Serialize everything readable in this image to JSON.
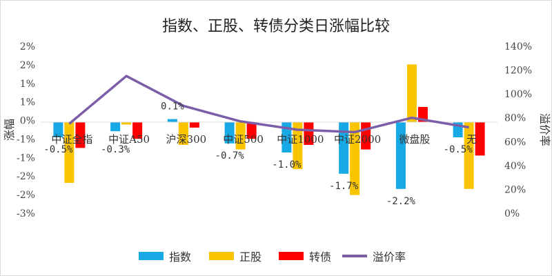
{
  "chart_data": {
    "type": "bar",
    "title": "指数、正股、转债分类日涨幅比较",
    "ylabel": "涨幅",
    "y2label": "溢价率",
    "categories": [
      "中证全指",
      "中证A50",
      "沪深300",
      "中证500",
      "中证1000",
      "中证2000",
      "微盘股",
      "无"
    ],
    "y_ticks": [
      "2%",
      "2%",
      "1%",
      "1%",
      "0%",
      "-1%",
      "-1%",
      "-2%",
      "-2%",
      "-3%"
    ],
    "y2_ticks": [
      "140%",
      "120%",
      "100%",
      "80%",
      "60%",
      "40%",
      "20%",
      "0%"
    ],
    "ylim": [
      -3.0,
      2.5
    ],
    "y2lim": [
      0,
      140
    ],
    "series": [
      {
        "name": "指数",
        "type": "bar",
        "color": "#16a9e6",
        "values": [
          -0.5,
          -0.3,
          0.1,
          -0.7,
          -1.0,
          -1.7,
          -2.2,
          -0.5
        ]
      },
      {
        "name": "正股",
        "type": "bar",
        "color": "#f9c400",
        "values": [
          -2.0,
          -0.08,
          -0.75,
          -0.9,
          -1.55,
          -2.4,
          1.9,
          -2.2
        ]
      },
      {
        "name": "转债",
        "type": "bar",
        "color": "#ff0000",
        "values": [
          -0.85,
          -0.55,
          -0.18,
          -0.55,
          -0.75,
          -0.9,
          0.5,
          -1.1
        ]
      },
      {
        "name": "溢价率",
        "type": "line",
        "axis": "secondary",
        "color": "#7b5ea7",
        "values": [
          75,
          115,
          90,
          77,
          70,
          68,
          80,
          72
        ]
      }
    ],
    "data_labels": [
      {
        "category": "中证全指",
        "text": "-0.5%"
      },
      {
        "category": "中证A50",
        "text": "-0.3%"
      },
      {
        "category": "沪深300",
        "text": "0.1%"
      },
      {
        "category": "中证500",
        "text": "-0.7%"
      },
      {
        "category": "中证1000",
        "text": "-1.0%"
      },
      {
        "category": "中证2000",
        "text": "-1.7%"
      },
      {
        "category": "微盘股",
        "text": "-2.2%"
      },
      {
        "category": "无",
        "text": "-0.5%"
      }
    ],
    "grid": false,
    "legend": "bottom"
  }
}
